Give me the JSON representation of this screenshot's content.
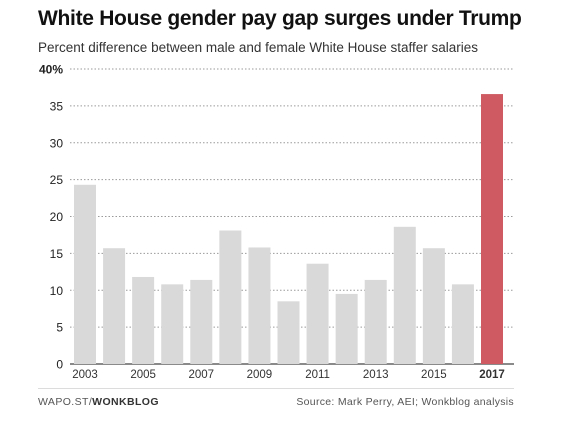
{
  "title": "White House gender pay gap surges under Trump",
  "subtitle": "Percent difference between male and female White House staffer salaries",
  "footer": {
    "brand_prefix": "WAPO.ST/",
    "brand_name": "WONKBLOG",
    "source": "Source: Mark Perry, AEI; Wonkblog analysis"
  },
  "colors": {
    "bar": "#d9d9d9",
    "highlight": "#cf5a62",
    "grid": "#9a9a9a"
  },
  "chart_data": {
    "type": "bar",
    "categories": [
      "2003",
      "2004",
      "2005",
      "2006",
      "2007",
      "2008",
      "2009",
      "2010",
      "2011",
      "2012",
      "2013",
      "2014",
      "2015",
      "2016",
      "2017"
    ],
    "values": [
      24.3,
      15.7,
      11.8,
      10.8,
      11.4,
      18.1,
      15.8,
      8.5,
      13.6,
      9.5,
      11.4,
      18.6,
      15.7,
      10.8,
      36.6
    ],
    "highlight_category": "2017",
    "xtick_labels": [
      "2003",
      "2005",
      "2007",
      "2009",
      "2011",
      "2013",
      "2015",
      "2017"
    ],
    "yticks": [
      0,
      5,
      10,
      15,
      20,
      25,
      30,
      35,
      40
    ],
    "ytick_labels": [
      "0",
      "5",
      "10",
      "15",
      "20",
      "25",
      "30",
      "35",
      "40%"
    ],
    "ylim": [
      0,
      40
    ],
    "xlabel": "",
    "ylabel": "",
    "grid": true
  }
}
